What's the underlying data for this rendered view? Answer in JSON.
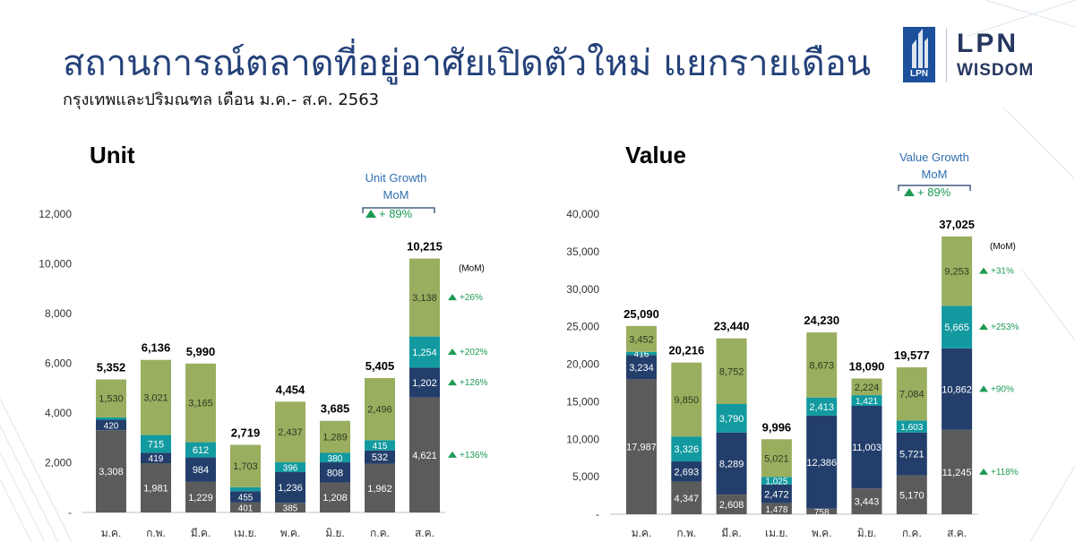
{
  "header": {
    "title": "สถานการณ์ตลาดที่อยู่อาศัยเปิดตัวใหม่ แยกรายเดือน",
    "subtitle": "กรุงเทพและปริมณฑล เดือน ม.ค.- ส.ค. 2563"
  },
  "logo": {
    "line1": "LPN",
    "line2": "WISDOM",
    "mark_text": "LPN"
  },
  "colors": {
    "segment_1": "#5b5b5b",
    "segment_2": "#233e6b",
    "segment_3": "#129aa0",
    "segment_4": "#9aae60",
    "growth_arrow": "#1d9a55",
    "accent": "#2f6fb1"
  },
  "chart_data": [
    {
      "type": "bar",
      "stacked": true,
      "title": "Unit",
      "categories": [
        "ม.ค.",
        "ก.พ.",
        "มี.ค.",
        "เม.ย.",
        "พ.ค.",
        "มิ.ย.",
        "ก.ค.",
        "ส.ค."
      ],
      "series": [
        {
          "values": [
            3308,
            1981,
            1229,
            401,
            385,
            1208,
            1962,
            4621
          ]
        },
        {
          "values": [
            420,
            419,
            984,
            455,
            1236,
            808,
            532,
            1202
          ]
        },
        {
          "values": [
            94,
            715,
            612,
            160,
            396,
            380,
            415,
            1254
          ]
        },
        {
          "values": [
            1530,
            3021,
            3165,
            1703,
            2437,
            1289,
            2496,
            3138
          ]
        }
      ],
      "totals": [
        "5,352",
        "6,136",
        "5,990",
        "2,719",
        "4,454",
        "3,685",
        "5,405",
        "10,215"
      ],
      "ylim": [
        0,
        12000
      ],
      "yticks": [
        0,
        2000,
        4000,
        6000,
        8000,
        10000,
        12000
      ],
      "ytick_labels": [
        "-",
        "2,000",
        "4,000",
        "6,000",
        "8,000",
        "10,000",
        "12,000"
      ],
      "growth_label": "(MoM)",
      "growth": [
        "+136%",
        "+126%",
        "+202%",
        "+26%"
      ],
      "growth_callout": {
        "line1": "Unit Growth",
        "line2": "MoM",
        "value": "+ 89%"
      }
    },
    {
      "type": "bar",
      "stacked": true,
      "title": "Value",
      "categories": [
        "ม.ค.",
        "ก.พ.",
        "มี.ค.",
        "เม.ย.",
        "พ.ค.",
        "มิ.ย.",
        "ก.ค.",
        "ส.ค."
      ],
      "series": [
        {
          "values": [
            17987,
            4347,
            2608,
            1478,
            758,
            3443,
            5170,
            11245
          ]
        },
        {
          "values": [
            3234,
            2693,
            8289,
            2472,
            12386,
            11003,
            5721,
            10862
          ]
        },
        {
          "values": [
            416,
            3326,
            3790,
            1025,
            2413,
            1421,
            1603,
            5665
          ]
        },
        {
          "values": [
            3452,
            9850,
            8752,
            5021,
            8673,
            2224,
            7084,
            9253
          ]
        }
      ],
      "totals": [
        "25,090",
        "20,216",
        "23,440",
        "9,996",
        "24,230",
        "18,090",
        "19,577",
        "37,025"
      ],
      "ylim": [
        0,
        40000
      ],
      "yticks": [
        0,
        5000,
        10000,
        15000,
        20000,
        25000,
        30000,
        35000,
        40000
      ],
      "ytick_labels": [
        "-",
        "5,000",
        "10,000",
        "15,000",
        "20,000",
        "25,000",
        "30,000",
        "35,000",
        "40,000"
      ],
      "growth_label": "(MoM)",
      "growth": [
        "+118%",
        "+90%",
        "+253%",
        "+31%"
      ],
      "growth_callout": {
        "line1": "Value Growth",
        "line2": "MoM",
        "value": "+ 89%"
      }
    }
  ]
}
